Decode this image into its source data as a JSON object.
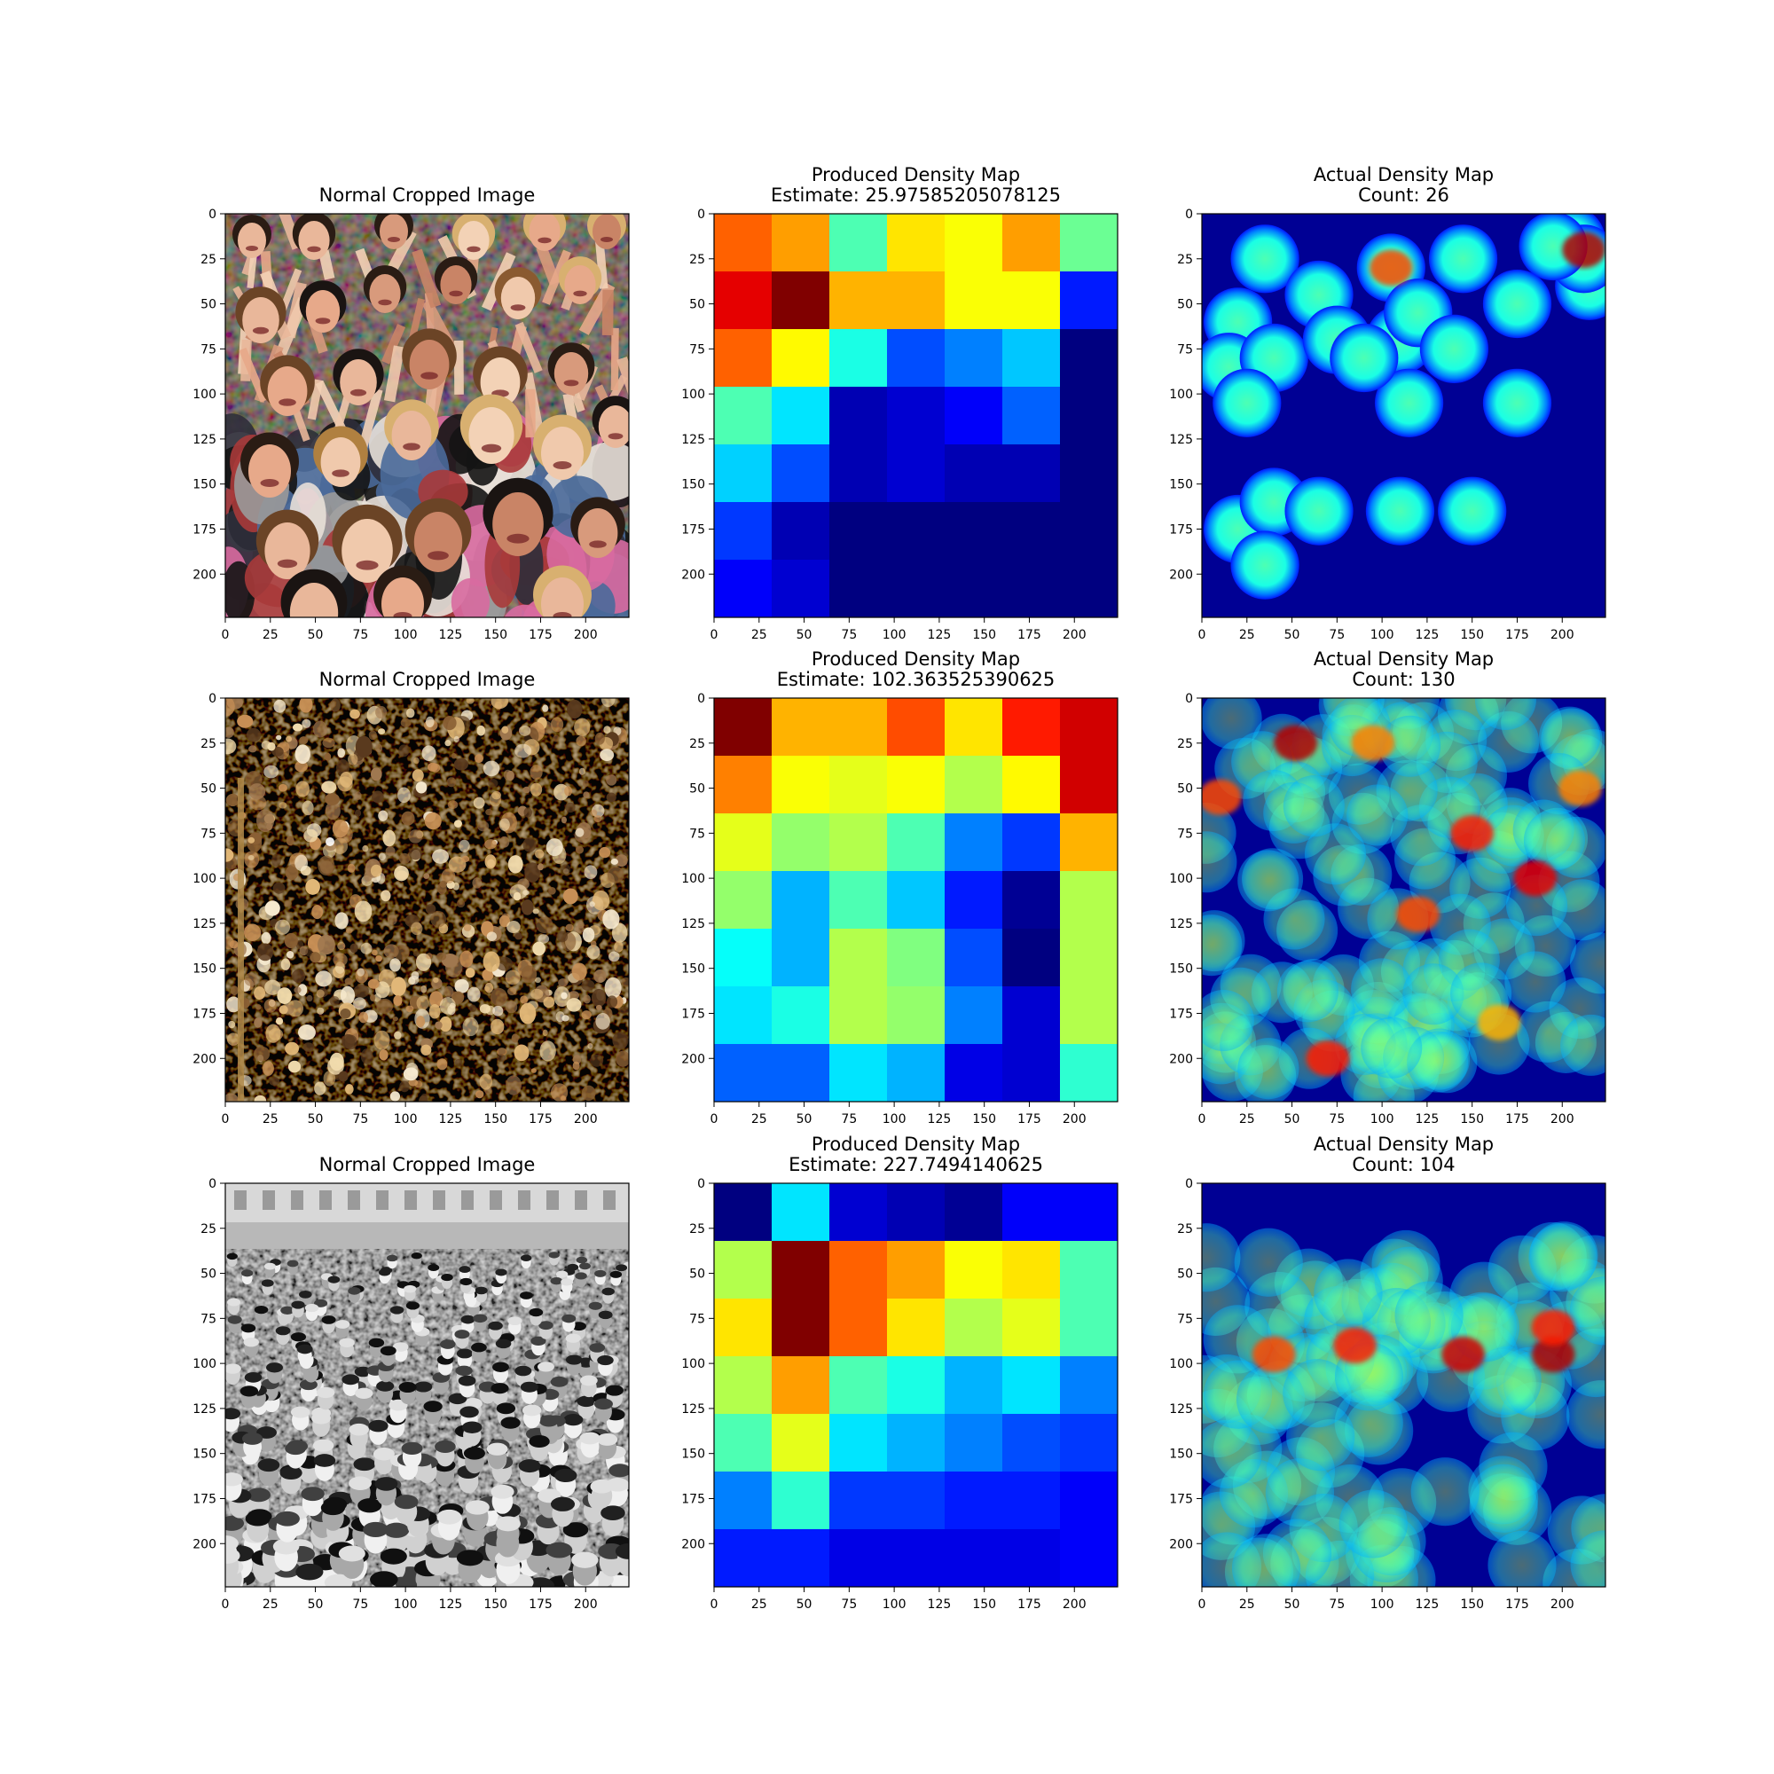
{
  "figure": {
    "image_title": "Normal Cropped Image",
    "produced_title": "Produced Density Map",
    "actual_title": "Actual Density Map"
  },
  "chart_data": {
    "type": "heatmap",
    "x_ticks": [
      0,
      25,
      50,
      75,
      100,
      125,
      150,
      175,
      200
    ],
    "y_ticks": [
      0,
      25,
      50,
      75,
      100,
      125,
      150,
      175,
      200
    ],
    "xlim": [
      0,
      224
    ],
    "ylim": [
      224,
      0
    ],
    "colormap": "jet",
    "rows": [
      {
        "image": {
          "title": "Normal Cropped Image",
          "kind": "color-crowd-photo"
        },
        "produced": {
          "title": "Produced Density Map",
          "subtitle": "Estimate: 25.97585205078125",
          "grid_7x7": [
            [
              0.78,
              0.72,
              0.45,
              0.65,
              0.62,
              0.72,
              0.48
            ],
            [
              0.9,
              1.0,
              0.7,
              0.7,
              0.62,
              0.62,
              0.15
            ],
            [
              0.78,
              0.63,
              0.4,
              0.2,
              0.25,
              0.32,
              0.0
            ],
            [
              0.45,
              0.35,
              0.05,
              0.08,
              0.12,
              0.22,
              0.0
            ],
            [
              0.33,
              0.2,
              0.05,
              0.08,
              0.05,
              0.05,
              0.0
            ],
            [
              0.18,
              0.05,
              0.0,
              0.0,
              0.0,
              0.0,
              0.0
            ],
            [
              0.12,
              0.08,
              0.0,
              0.0,
              0.0,
              0.0,
              0.0
            ]
          ]
        },
        "actual": {
          "title": "Actual Density Map",
          "subtitle": "Count: 26"
        }
      },
      {
        "image": {
          "title": "Normal Cropped Image",
          "kind": "night-crowd-photo"
        },
        "produced": {
          "title": "Produced Density Map",
          "subtitle": "Estimate: 102.363525390625",
          "grid_7x7": [
            [
              1.0,
              0.7,
              0.7,
              0.8,
              0.65,
              0.85,
              0.92
            ],
            [
              0.75,
              0.62,
              0.6,
              0.62,
              0.55,
              0.63,
              0.92
            ],
            [
              0.6,
              0.52,
              0.55,
              0.45,
              0.25,
              0.18,
              0.7
            ],
            [
              0.52,
              0.3,
              0.45,
              0.32,
              0.15,
              0.02,
              0.55
            ],
            [
              0.38,
              0.3,
              0.55,
              0.5,
              0.2,
              0.0,
              0.55
            ],
            [
              0.35,
              0.4,
              0.55,
              0.52,
              0.25,
              0.08,
              0.55
            ],
            [
              0.22,
              0.22,
              0.35,
              0.3,
              0.1,
              0.08,
              0.42
            ]
          ]
        },
        "actual": {
          "title": "Actual Density Map",
          "subtitle": "Count: 130"
        }
      },
      {
        "image": {
          "title": "Normal Cropped Image",
          "kind": "grayscale-crowd-photo"
        },
        "produced": {
          "title": "Produced Density Map",
          "subtitle": "Estimate: 227.7494140625",
          "grid_7x7": [
            [
              0.0,
              0.35,
              0.08,
              0.05,
              0.02,
              0.12,
              0.12
            ],
            [
              0.55,
              1.0,
              0.78,
              0.72,
              0.62,
              0.65,
              0.45
            ],
            [
              0.65,
              1.0,
              0.78,
              0.65,
              0.55,
              0.6,
              0.45
            ],
            [
              0.55,
              0.72,
              0.45,
              0.4,
              0.3,
              0.35,
              0.25
            ],
            [
              0.45,
              0.6,
              0.35,
              0.3,
              0.25,
              0.2,
              0.18
            ],
            [
              0.25,
              0.42,
              0.18,
              0.18,
              0.15,
              0.15,
              0.12
            ],
            [
              0.15,
              0.15,
              0.1,
              0.1,
              0.1,
              0.1,
              0.12
            ]
          ]
        },
        "actual": {
          "title": "Actual Density Map",
          "subtitle": "Count: 104"
        }
      }
    ]
  }
}
